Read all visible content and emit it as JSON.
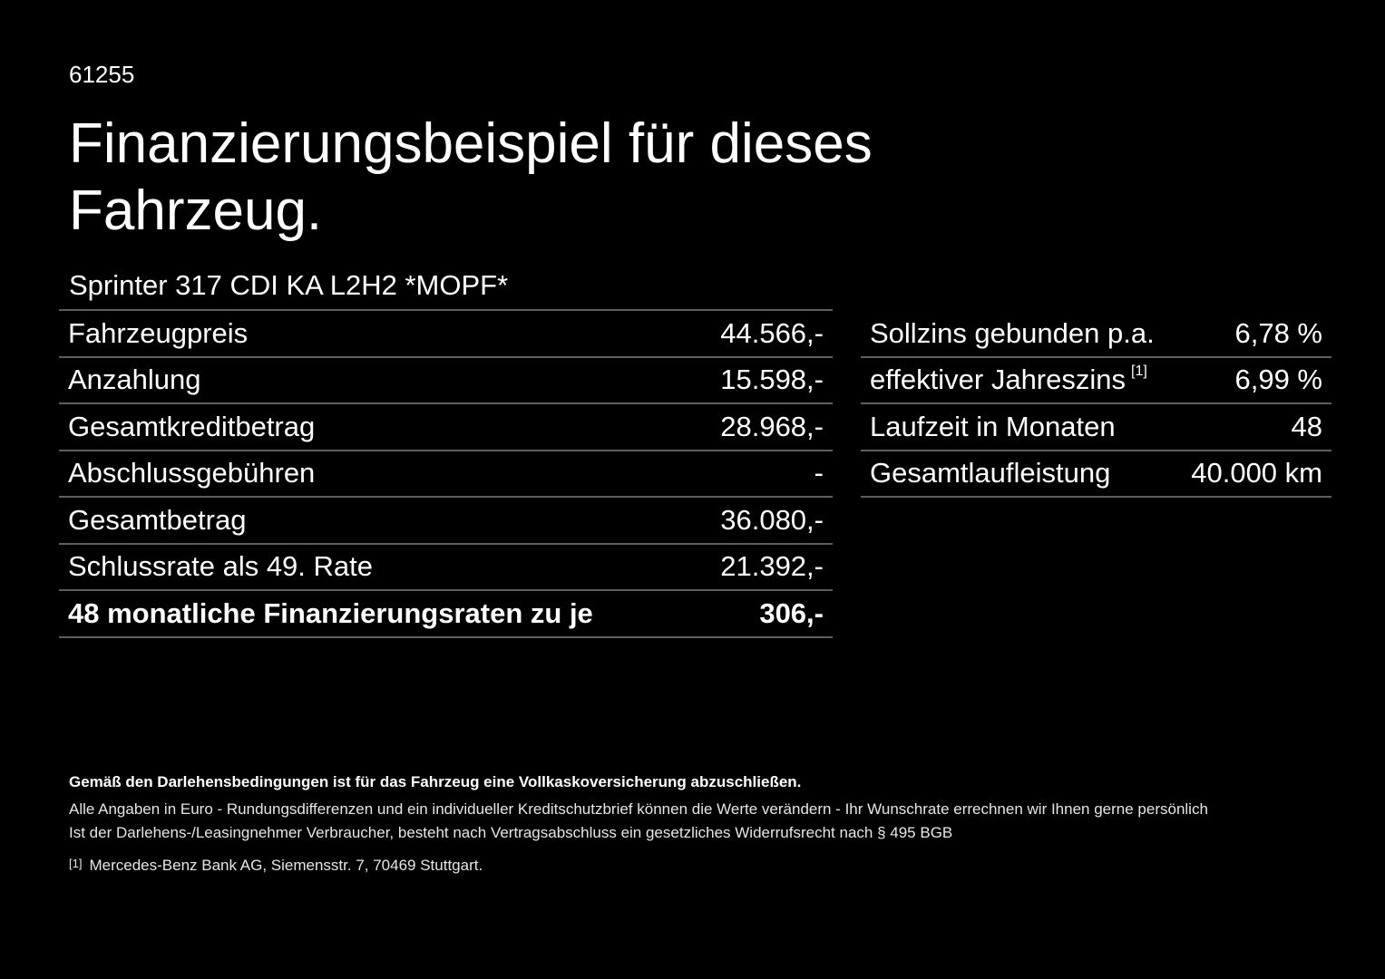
{
  "offer_id": "61255",
  "title": "Finanzierungsbeispiel für dieses Fahrzeug.",
  "model": "Sprinter 317 CDI KA L2H2 *MOPF*",
  "left_table": [
    {
      "label": "Fahrzeugpreis",
      "value": "44.566,-"
    },
    {
      "label": "Anzahlung",
      "value": "15.598,-"
    },
    {
      "label": "Gesamtkreditbetrag",
      "value": "28.968,-"
    },
    {
      "label": "Abschlussgebühren",
      "value": "-"
    },
    {
      "label": "Gesamtbetrag",
      "value": "36.080,-"
    },
    {
      "label": "Schlussrate als 49. Rate",
      "value": "21.392,-"
    },
    {
      "label": "48 monatliche Finanzierungsraten zu je",
      "value": "306,-"
    }
  ],
  "right_table": [
    {
      "label": "Sollzins gebunden p.a.",
      "value": "6,78 %"
    },
    {
      "label": "effektiver Jahreszins",
      "footnote": "[1]",
      "value": "6,99 %"
    },
    {
      "label": "Laufzeit in Monaten",
      "value": "48"
    },
    {
      "label": "Gesamtlaufleistung",
      "value": "40.000 km"
    }
  ],
  "footer": {
    "insurance_note": "Gemäß den Darlehensbedingungen ist für das Fahrzeug eine Vollkaskoversicherung abzuschließen.",
    "disclaimer": "Alle Angaben in Euro - Rundungsdifferenzen und ein individueller Kreditschutzbrief können die Werte verändern - Ihr Wunschrate errechnen wir Ihnen gerne persönlich",
    "withdrawal": "Ist der Darlehens-/Leasingnehmer Verbraucher, besteht nach Vertragsabschluss ein gesetzliches Widerrufsrecht nach § 495 BGB",
    "footnote_ref": "[1]",
    "footnote_text": "Mercedes-Benz Bank AG, Siemensstr. 7, 70469 Stuttgart."
  }
}
